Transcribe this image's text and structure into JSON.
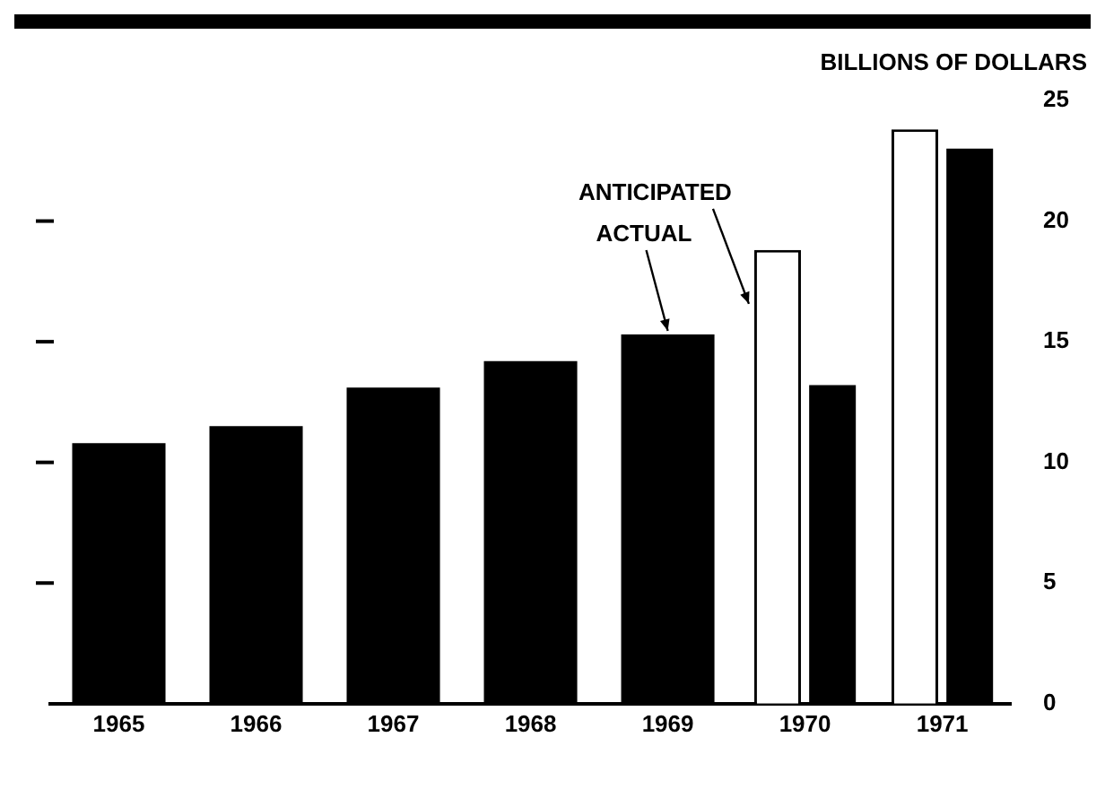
{
  "chart_data": {
    "type": "bar",
    "ylabel": "BILLIONS OF DOLLARS",
    "categories": [
      "1965",
      "1966",
      "1967",
      "1968",
      "1969",
      "1970",
      "1971"
    ],
    "series": [
      {
        "name": "ACTUAL",
        "color": "#000000",
        "values": [
          10.8,
          11.5,
          13.1,
          14.2,
          15.3,
          13.2,
          23.0
        ]
      },
      {
        "name": "ANTICIPATED",
        "color": "#ffffff",
        "values": [
          null,
          null,
          null,
          null,
          null,
          18.8,
          23.8
        ]
      }
    ],
    "ylim": [
      0,
      25
    ],
    "yticks": [
      0,
      5,
      10,
      15,
      20,
      25
    ],
    "grid": false,
    "legend": false
  }
}
